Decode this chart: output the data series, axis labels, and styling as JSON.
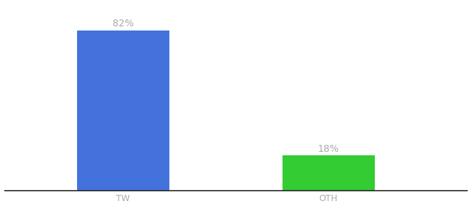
{
  "categories": [
    "TW",
    "OTH"
  ],
  "values": [
    82,
    18
  ],
  "bar_colors": [
    "#4472DD",
    "#33CC33"
  ],
  "labels": [
    "82%",
    "18%"
  ],
  "background_color": "#ffffff",
  "text_color": "#aaaaaa",
  "label_fontsize": 10,
  "tick_fontsize": 9,
  "ylim": [
    0,
    95
  ],
  "bar_width": 0.18,
  "x_positions": [
    0.28,
    0.68
  ]
}
